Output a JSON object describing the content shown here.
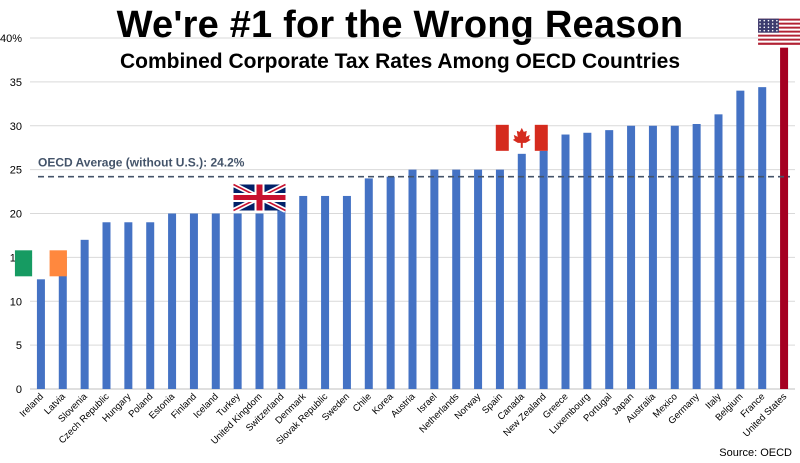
{
  "chart_data": {
    "type": "bar",
    "title": "We're #1 for the Wrong Reason",
    "subtitle": "Combined Corporate Tax Rates Among OECD Countries",
    "source": "Source: OECD",
    "ylim": [
      0,
      40
    ],
    "yticks": [
      "0",
      "5",
      "10",
      "15",
      "20",
      "25",
      "30",
      "35",
      "40%"
    ],
    "grid": true,
    "categories": [
      "Ireland",
      "Latvia",
      "Slovenia",
      "Czech Republic",
      "Hungary",
      "Poland",
      "Estonia",
      "Finland",
      "Iceland",
      "Turkey",
      "United Kingdom",
      "Switzerland",
      "Denmark",
      "Slovak Republic",
      "Sweden",
      "Chile",
      "Korea",
      "Austria",
      "Israel",
      "Netherlands",
      "Norway",
      "Spain",
      "Canada",
      "New Zealand",
      "Greece",
      "Luxembourg",
      "Portugal",
      "Japan",
      "Australia",
      "Mexico",
      "Germany",
      "Italy",
      "Belgium",
      "France",
      "United States"
    ],
    "values": [
      12.5,
      15,
      17,
      19,
      19,
      19,
      20,
      20,
      20,
      20,
      20,
      21.1,
      22,
      22,
      22,
      24,
      24.2,
      25,
      25,
      25,
      25,
      25,
      26.8,
      28,
      29,
      29.2,
      29.5,
      30,
      30,
      30,
      30.2,
      31.3,
      34,
      34.4,
      38.9
    ],
    "highlight": "United States",
    "colors": {
      "bar": "#4472C4",
      "highlight": "#A50021",
      "grid": "#D9D9D9",
      "average_line": "#44546A"
    },
    "average": {
      "label": "OECD Average (without U.S.): 24.2%",
      "value": 24.2
    },
    "flags": [
      "Ireland",
      "United Kingdom",
      "Canada",
      "United States"
    ]
  }
}
